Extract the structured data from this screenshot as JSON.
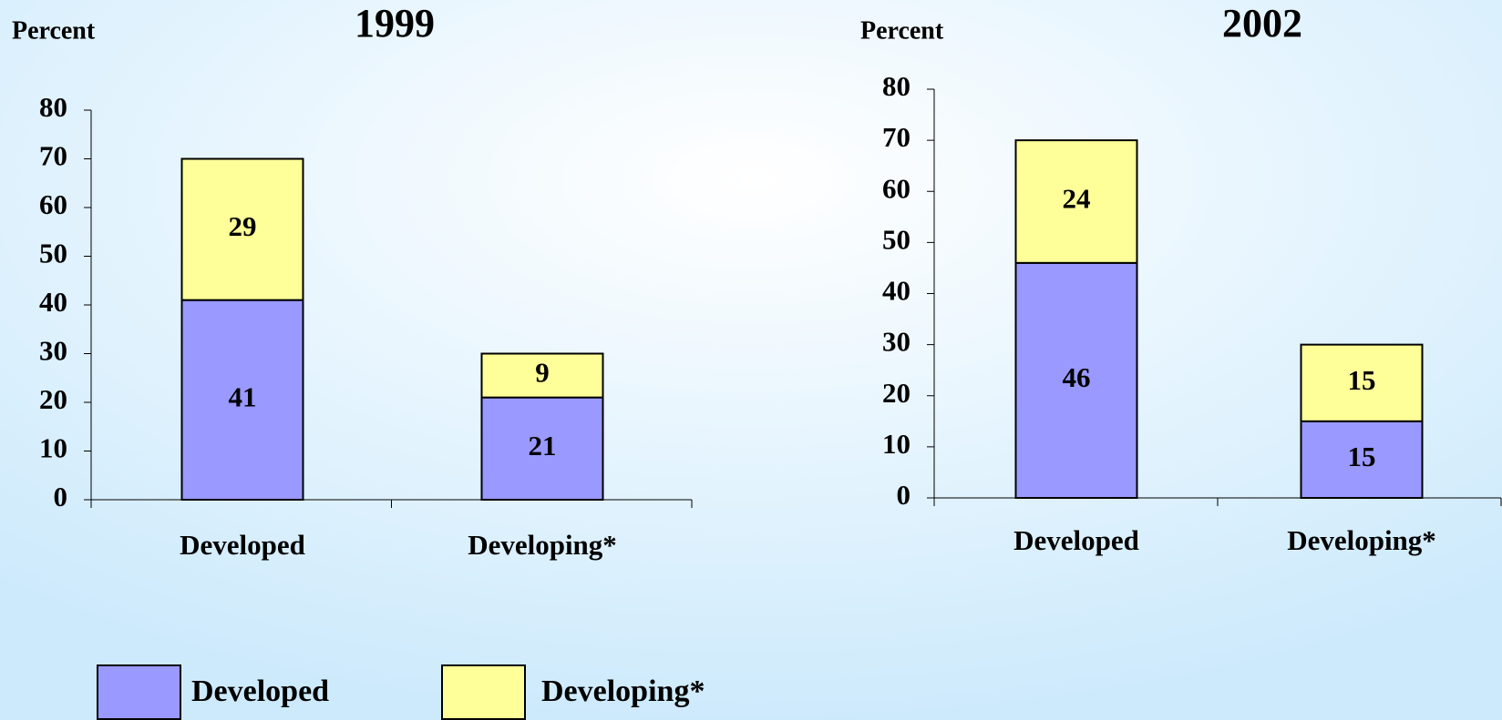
{
  "chart_data": [
    {
      "type": "bar",
      "stacked": true,
      "title": "1999",
      "ylabel": "Percent",
      "categories": [
        "Developed",
        "Developing*"
      ],
      "series": [
        {
          "name": "Developed",
          "color": "#9999ff",
          "values": [
            41,
            21
          ]
        },
        {
          "name": "Developing*",
          "color": "#ffff99",
          "values": [
            29,
            9
          ]
        }
      ],
      "ylim": [
        0,
        80
      ],
      "yticks": [
        0,
        10,
        20,
        30,
        40,
        50,
        60,
        70,
        80
      ]
    },
    {
      "type": "bar",
      "stacked": true,
      "title": "2002",
      "ylabel": "Percent",
      "categories": [
        "Developed",
        "Developing*"
      ],
      "series": [
        {
          "name": "Developed",
          "color": "#9999ff",
          "values": [
            46,
            15
          ]
        },
        {
          "name": "Developing*",
          "color": "#ffff99",
          "values": [
            24,
            15
          ]
        }
      ],
      "ylim": [
        0,
        80
      ],
      "yticks": [
        0,
        10,
        20,
        30,
        40,
        50,
        60,
        70,
        80
      ]
    }
  ]
}
